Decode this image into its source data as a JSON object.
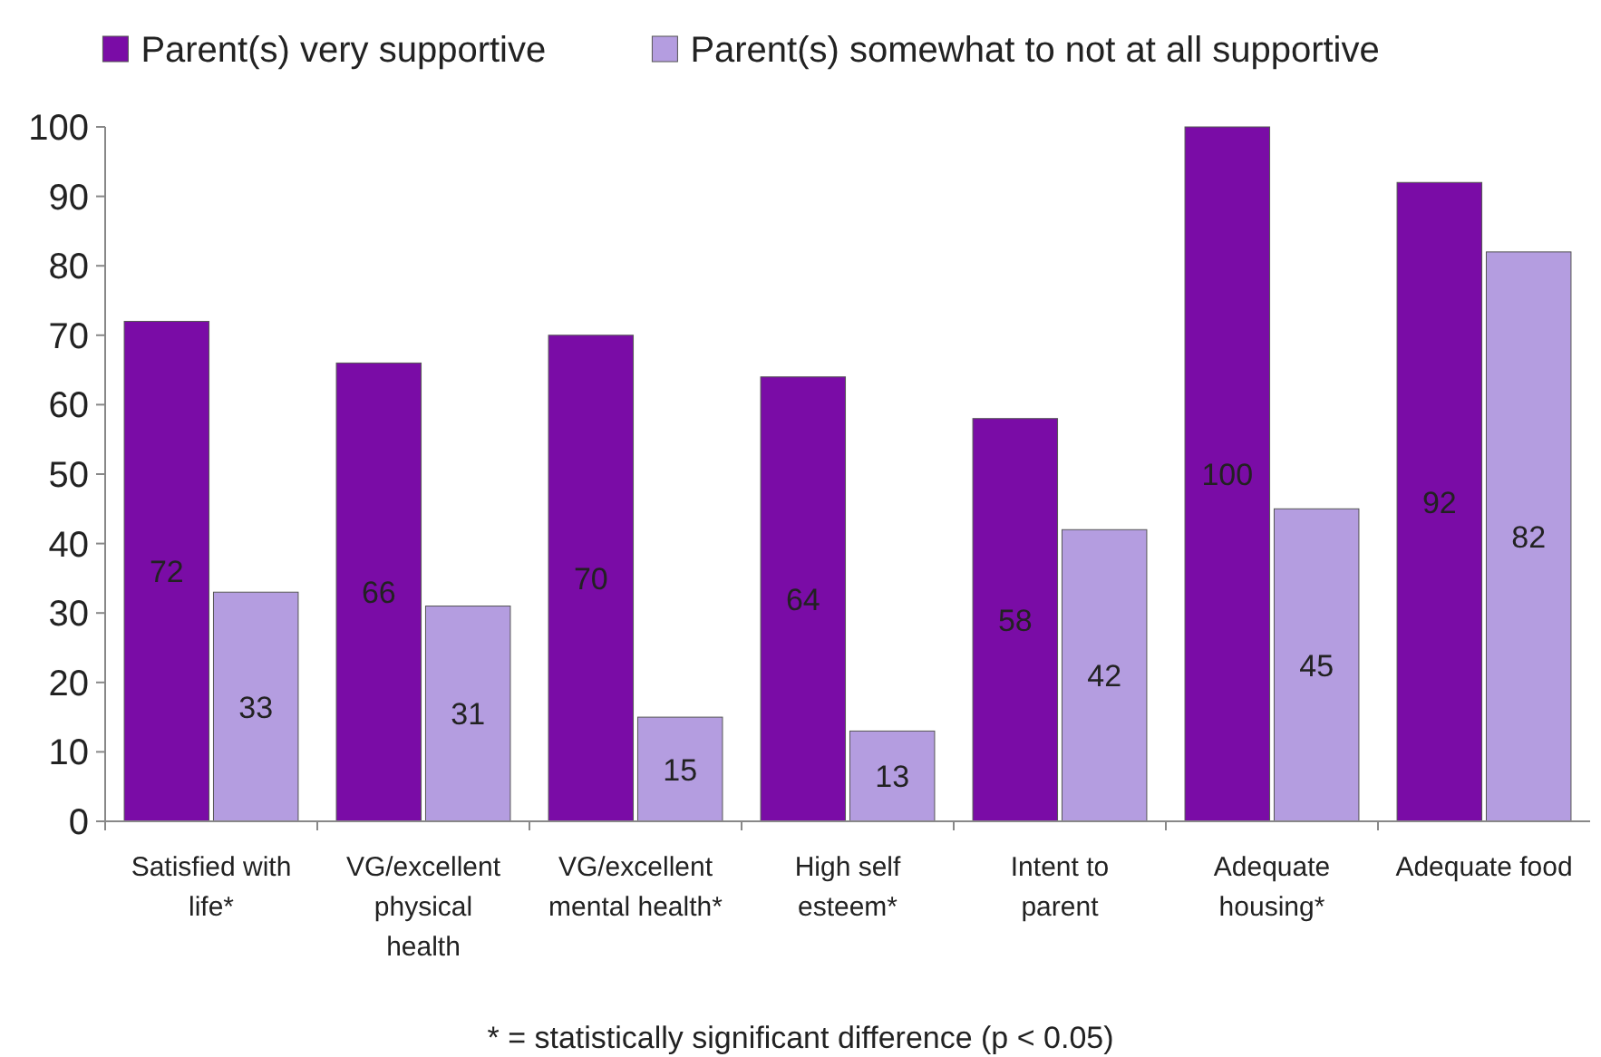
{
  "chart_data": {
    "type": "bar",
    "categories": [
      "Satisfied with life*",
      "VG/excellent physical health",
      "VG/excellent mental health*",
      "High self esteem*",
      "Intent to parent",
      "Adequate housing*",
      "Adequate food"
    ],
    "series": [
      {
        "name": "Parent(s) very supportive",
        "color": "#7a0ca6",
        "values": [
          72,
          66,
          70,
          64,
          58,
          100,
          92
        ]
      },
      {
        "name": "Parent(s) somewhat to not at all supportive",
        "color": "#b49de0",
        "values": [
          33,
          31,
          15,
          13,
          42,
          45,
          82
        ]
      }
    ],
    "ylim": [
      0,
      100
    ],
    "yticks": [
      0,
      10,
      20,
      30,
      40,
      50,
      60,
      70,
      80,
      90,
      100
    ],
    "data_labels": true,
    "legend": "top",
    "grid": false,
    "annotations": [
      "* = statistically significant difference (p < 0.05)"
    ]
  }
}
